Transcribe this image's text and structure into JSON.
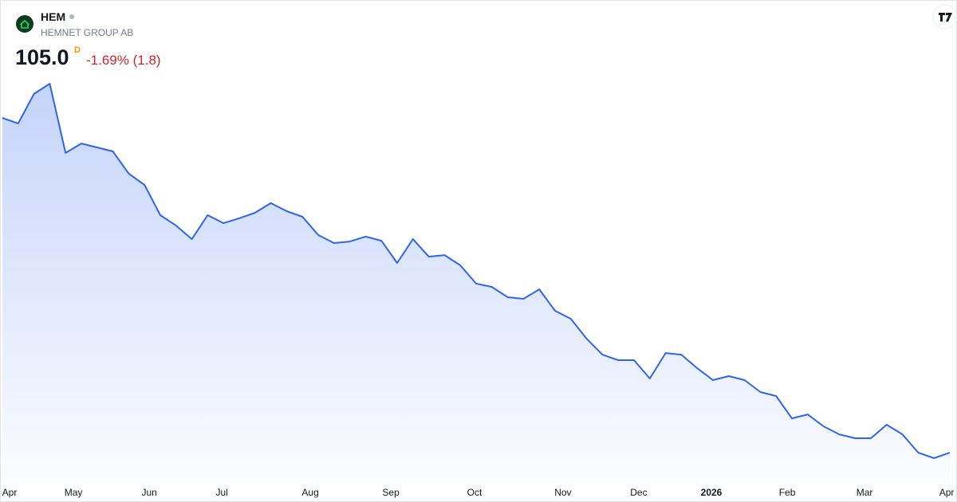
{
  "header": {
    "symbol": "HEM",
    "name": "HEMNET GROUP AB",
    "price": "105.0",
    "interval": "D",
    "change": "-1.69%",
    "change_abs": "(1.8)"
  },
  "chart_data": {
    "type": "area",
    "color": "#2f65ee",
    "values": [
      317.1,
      313.6,
      332.3,
      338.8,
      294.9,
      300.9,
      298.4,
      295.9,
      281.8,
      274.7,
      255.5,
      248.9,
      240.3,
      255.5,
      250.4,
      253.5,
      257.0,
      263.1,
      258.0,
      254.5,
      242.9,
      237.8,
      238.8,
      241.9,
      239.3,
      225.2,
      240.3,
      229.2,
      230.2,
      223.7,
      212.1,
      210.0,
      203.5,
      202.5,
      208.5,
      194.9,
      189.8,
      177.2,
      167.1,
      163.6,
      163.6,
      152.0,
      168.1,
      167.1,
      158.5,
      151.0,
      153.5,
      151.0,
      143.4,
      140.9,
      126.7,
      129.2,
      121.7,
      116.6,
      114.1,
      114.1,
      122.7,
      116.6,
      105.0,
      101.5,
      105.0
    ],
    "xticks": [
      {
        "value": 0.4,
        "label": "Apr"
      },
      {
        "value": 4.5,
        "label": "May"
      },
      {
        "value": 9.3,
        "label": "Jun"
      },
      {
        "value": 13.9,
        "label": "Jul"
      },
      {
        "value": 19.5,
        "label": "Aug"
      },
      {
        "value": 24.6,
        "label": "Sep"
      },
      {
        "value": 29.9,
        "label": "Oct"
      },
      {
        "value": 35.5,
        "label": "Nov"
      },
      {
        "value": 40.3,
        "label": "Dec"
      },
      {
        "value": 44.9,
        "label": "2026"
      },
      {
        "value": 49.7,
        "label": "Feb"
      },
      {
        "value": 54.6,
        "label": "Mar"
      },
      {
        "value": 59.8,
        "label": "Apr"
      }
    ]
  }
}
